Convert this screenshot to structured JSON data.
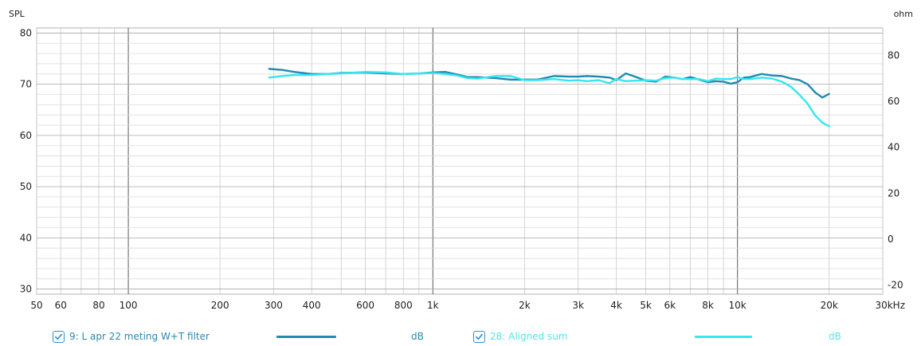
{
  "colors": {
    "series1": "#1f8bb0",
    "series2": "#35e6f0",
    "grid": "#c9c9c9",
    "major_grid": "#6a6a6a",
    "text": "#1f1f1f",
    "legend1_text": "#2a88b0",
    "legend2_text": "#56e3e9",
    "checkbox": "#2f8fd8"
  },
  "axes": {
    "left_title": "SPL",
    "right_title": "ohm"
  },
  "legend": {
    "series1": {
      "label": "9: L apr 22 meting W+T filter",
      "unit": "dB"
    },
    "series2": {
      "label": "28: Aligned sum",
      "unit": "dB"
    }
  },
  "chart_data": {
    "type": "line",
    "xlabel": "",
    "ylabel": "SPL",
    "y2label": "ohm",
    "xscale": "log",
    "xlim": [
      50,
      30000
    ],
    "ylim": [
      29,
      81
    ],
    "y2lim": [
      -24,
      92
    ],
    "xticks": [
      50,
      60,
      80,
      100,
      200,
      300,
      400,
      600,
      800,
      1000,
      2000,
      3000,
      4000,
      5000,
      6000,
      8000,
      10000,
      20000,
      30000
    ],
    "xticklabels": [
      "50",
      "60",
      "80",
      "100",
      "200",
      "300",
      "400",
      "600",
      "800",
      "1k",
      "2k",
      "3k",
      "4k",
      "5k",
      "6k",
      "8k",
      "10k",
      "20k",
      "30kHz"
    ],
    "yticks": [
      30,
      40,
      50,
      60,
      70,
      80
    ],
    "yticklabels": [
      "30",
      "40",
      "50",
      "60",
      "70",
      "80"
    ],
    "y2ticks": [
      -20,
      0,
      20,
      40,
      60,
      80
    ],
    "y2ticklabels": [
      "-20",
      "0",
      "20",
      "40",
      "60",
      "80"
    ],
    "grid": true,
    "legend": "bottom",
    "series": [
      {
        "name": "9: L apr 22 meting W+T filter",
        "unit": "dB",
        "color": "#1f8bb0",
        "x": [
          290,
          320,
          350,
          400,
          450,
          500,
          600,
          700,
          800,
          900,
          1000,
          1100,
          1200,
          1300,
          1400,
          1600,
          1800,
          2000,
          2200,
          2500,
          2800,
          3000,
          3200,
          3500,
          3800,
          4000,
          4300,
          4600,
          5000,
          5400,
          5800,
          6200,
          6600,
          7000,
          7500,
          8000,
          8500,
          9000,
          9500,
          10000,
          10500,
          11000,
          12000,
          13000,
          14000,
          15000,
          16000,
          17000,
          18000,
          19000,
          20000
        ],
        "y": [
          73.0,
          72.8,
          72.4,
          72.0,
          72.0,
          72.2,
          72.3,
          72.1,
          72.0,
          72.1,
          72.3,
          72.4,
          71.9,
          71.4,
          71.4,
          71.2,
          70.9,
          70.9,
          70.9,
          71.6,
          71.5,
          71.5,
          71.6,
          71.5,
          71.3,
          70.8,
          72.1,
          71.5,
          70.7,
          70.5,
          71.5,
          71.3,
          71.0,
          71.4,
          70.9,
          70.4,
          70.6,
          70.5,
          70.1,
          70.4,
          71.3,
          71.4,
          72.0,
          71.7,
          71.6,
          71.1,
          70.8,
          70.0,
          68.4,
          67.4,
          68.1
        ]
      },
      {
        "name": "28: Aligned sum",
        "unit": "dB",
        "color": "#35e6f0",
        "x": [
          290,
          320,
          350,
          400,
          450,
          500,
          600,
          700,
          800,
          900,
          1000,
          1100,
          1200,
          1300,
          1400,
          1600,
          1800,
          2000,
          2200,
          2500,
          2800,
          3000,
          3200,
          3500,
          3800,
          4000,
          4300,
          4600,
          5000,
          5400,
          5800,
          6200,
          6600,
          7000,
          7500,
          8000,
          8500,
          9000,
          9500,
          10000,
          10500,
          11000,
          12000,
          13000,
          14000,
          15000,
          16000,
          17000,
          18000,
          19000,
          20000
        ],
        "y": [
          71.3,
          71.6,
          71.8,
          71.8,
          72.0,
          72.1,
          72.4,
          72.3,
          72.0,
          72.1,
          72.2,
          72.0,
          71.7,
          71.2,
          71.1,
          71.6,
          71.6,
          70.8,
          70.8,
          71.0,
          70.7,
          70.8,
          70.6,
          70.8,
          70.2,
          71.0,
          70.6,
          70.7,
          70.8,
          70.7,
          71.2,
          71.3,
          71.0,
          71.0,
          71.0,
          70.6,
          71.1,
          71.0,
          71.0,
          71.4,
          71.0,
          71.0,
          71.3,
          71.1,
          70.5,
          69.5,
          67.9,
          66.2,
          63.9,
          62.5,
          61.8
        ]
      }
    ]
  }
}
